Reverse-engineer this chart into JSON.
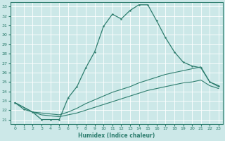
{
  "xlabel": "Humidex (Indice chaleur)",
  "bg_color": "#cce8e8",
  "line_color": "#2d7d6e",
  "grid_color": "#ffffff",
  "xlim": [
    -0.5,
    23.5
  ],
  "ylim": [
    20.5,
    33.5
  ],
  "x_ticks": [
    0,
    1,
    2,
    3,
    4,
    5,
    6,
    7,
    8,
    9,
    10,
    11,
    12,
    13,
    14,
    15,
    16,
    17,
    18,
    19,
    20,
    21,
    22,
    23
  ],
  "y_ticks": [
    21,
    22,
    23,
    24,
    25,
    26,
    27,
    28,
    29,
    30,
    31,
    32,
    33
  ],
  "line1_x": [
    0,
    1,
    2,
    3,
    4,
    5,
    6,
    7,
    8,
    9,
    10,
    11,
    12,
    13,
    14,
    15,
    16,
    17,
    18,
    19,
    20,
    21,
    22,
    23
  ],
  "line1_y": [
    22.8,
    22.1,
    21.8,
    21.0,
    21.0,
    21.0,
    23.3,
    24.5,
    26.5,
    28.2,
    30.9,
    32.2,
    31.7,
    32.6,
    33.2,
    33.2,
    31.5,
    29.7,
    28.2,
    27.1,
    26.7,
    26.5,
    25.0,
    24.6
  ],
  "line2_x": [
    0,
    2,
    3,
    4,
    5,
    6,
    7,
    8,
    9,
    10,
    11,
    12,
    13,
    14,
    15,
    16,
    17,
    18,
    19,
    20,
    21,
    22,
    23
  ],
  "line2_y": [
    22.8,
    21.8,
    21.7,
    21.6,
    21.5,
    21.8,
    22.2,
    22.7,
    23.1,
    23.5,
    23.9,
    24.2,
    24.5,
    24.9,
    25.2,
    25.5,
    25.8,
    26.0,
    26.2,
    26.4,
    26.6,
    25.0,
    24.5
  ],
  "line3_x": [
    0,
    2,
    3,
    4,
    5,
    6,
    7,
    8,
    9,
    10,
    11,
    12,
    13,
    14,
    15,
    16,
    17,
    18,
    19,
    20,
    21,
    22,
    23
  ],
  "line3_y": [
    22.8,
    21.8,
    21.5,
    21.4,
    21.3,
    21.5,
    21.7,
    22.0,
    22.3,
    22.6,
    22.9,
    23.2,
    23.5,
    23.8,
    24.1,
    24.3,
    24.5,
    24.7,
    24.9,
    25.0,
    25.2,
    24.6,
    24.3
  ]
}
